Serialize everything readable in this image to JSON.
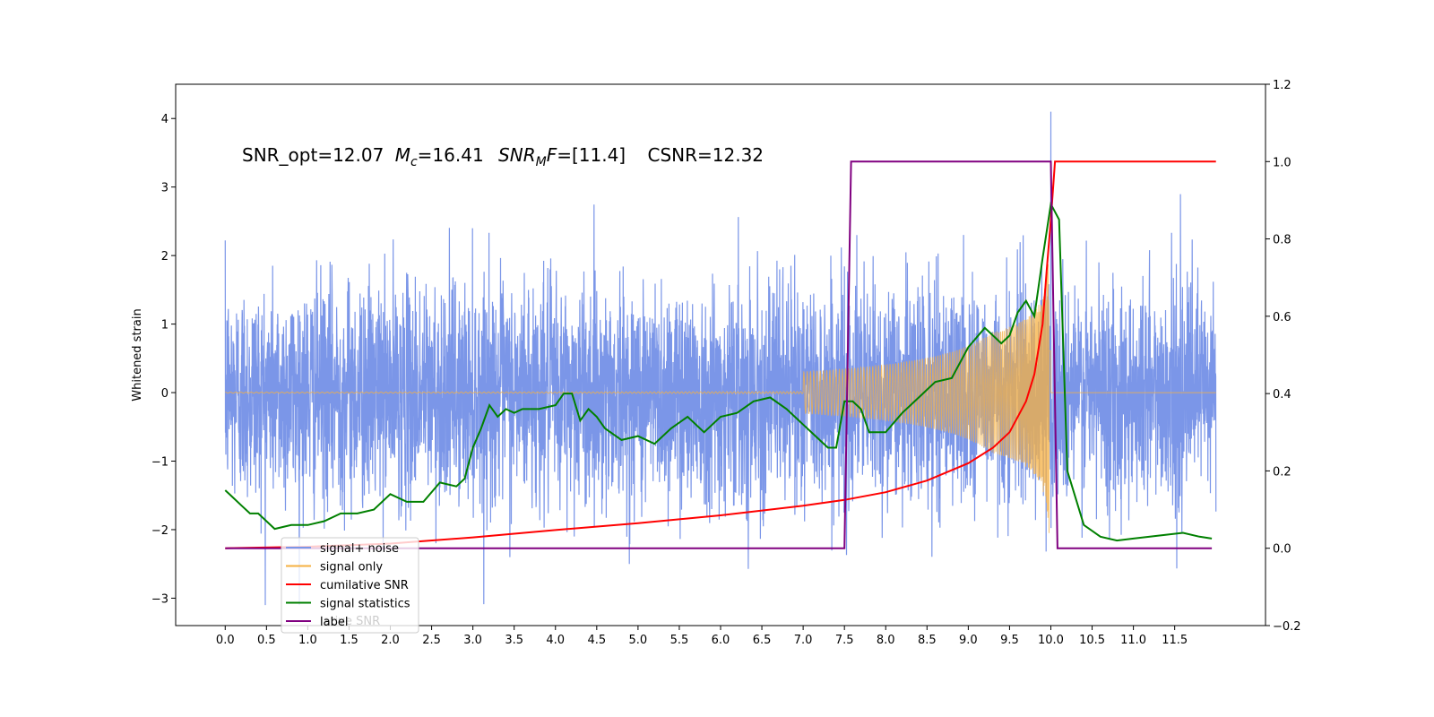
{
  "chart_data": {
    "type": "line",
    "title": "",
    "xlabel": "",
    "ylabel": "Whitened strain",
    "y2label": "",
    "xlim": [
      -0.6,
      12.6
    ],
    "ylim": [
      -3.4,
      4.5
    ],
    "y2lim": [
      -0.2,
      1.2
    ],
    "x_ticks": [
      0.0,
      0.5,
      1.0,
      1.5,
      2.0,
      2.5,
      3.0,
      3.5,
      4.0,
      4.5,
      5.0,
      5.5,
      6.0,
      6.5,
      7.0,
      7.5,
      8.0,
      8.5,
      9.0,
      9.5,
      10.0,
      10.5,
      11.0,
      11.5
    ],
    "x_tick_labels": [
      "0.0",
      "0.5",
      "1.0",
      "1.5",
      "2.0",
      "2.5",
      "3.0",
      "3.5",
      "4.0",
      "4.5",
      "5.0",
      "5.5",
      "6.0",
      "6.5",
      "7.0",
      "7.5",
      "8.0",
      "8.5",
      "9.0",
      "9.5",
      "10.0",
      "10.5",
      "11.0",
      "11.5"
    ],
    "y_ticks": [
      -3,
      -2,
      -1,
      0,
      1,
      2,
      3,
      4
    ],
    "y_tick_labels": [
      "−3",
      "−2",
      "−1",
      "0",
      "1",
      "2",
      "3",
      "4"
    ],
    "y2_ticks": [
      -0.2,
      0.0,
      0.2,
      0.4,
      0.6,
      0.8,
      1.0,
      1.2
    ],
    "y2_tick_labels": [
      "−0.2",
      "0.0",
      "0.2",
      "0.4",
      "0.6",
      "0.8",
      "1.0",
      "1.2"
    ],
    "grid": false,
    "legend_position": "lower-left",
    "annotation": {
      "snr_opt": "SNR_opt=12.07",
      "mc_symbol": "M",
      "mc_sub": "c",
      "mc_value": "=16.41",
      "mf_symbol": "SNR",
      "mf_sub": "M",
      "mf_symbol2": "F",
      "mf_value": "=[11.4]",
      "csnr": "CSNR=12.32"
    },
    "series": [
      {
        "name": "signal+ noise",
        "axis": "left",
        "color": "#7b96e8",
        "description": "whitened strain, noise with ~0.8 std spanning x 0 to 12",
        "x_range": [
          0.0,
          12.0
        ],
        "approx_range": [
          -3.1,
          4.1
        ]
      },
      {
        "name": "signal only",
        "axis": "left",
        "color": "#f5b041",
        "chirp": {
          "t_start": 0.0,
          "t_merge": 10.0,
          "t_end": 12.0,
          "amp_at_merge": 2.1
        }
      },
      {
        "name": "cumilative SNR",
        "axis": "right",
        "color": "#ff0000",
        "x": [
          0.0,
          1.0,
          2.0,
          3.0,
          4.0,
          5.0,
          6.0,
          7.0,
          7.5,
          8.0,
          8.5,
          9.0,
          9.3,
          9.5,
          9.7,
          9.8,
          9.9,
          9.95,
          10.0,
          10.05,
          12.0
        ],
        "y": [
          0.0,
          0.004,
          0.012,
          0.028,
          0.047,
          0.065,
          0.085,
          0.11,
          0.125,
          0.145,
          0.175,
          0.22,
          0.26,
          0.3,
          0.38,
          0.45,
          0.58,
          0.72,
          0.85,
          1.0,
          1.0
        ]
      },
      {
        "name": "signal statistics",
        "axis": "right",
        "color": "#008000",
        "x": [
          0.0,
          0.1,
          0.2,
          0.3,
          0.4,
          0.5,
          0.6,
          0.8,
          1.0,
          1.2,
          1.4,
          1.6,
          1.8,
          2.0,
          2.2,
          2.4,
          2.6,
          2.8,
          2.9,
          3.0,
          3.1,
          3.2,
          3.3,
          3.4,
          3.5,
          3.6,
          3.8,
          4.0,
          4.1,
          4.2,
          4.3,
          4.4,
          4.5,
          4.6,
          4.8,
          5.0,
          5.2,
          5.4,
          5.6,
          5.8,
          6.0,
          6.2,
          6.4,
          6.6,
          6.8,
          7.0,
          7.2,
          7.3,
          7.4,
          7.5,
          7.6,
          7.7,
          7.8,
          8.0,
          8.2,
          8.4,
          8.6,
          8.8,
          9.0,
          9.2,
          9.4,
          9.5,
          9.6,
          9.7,
          9.8,
          9.9,
          10.0,
          10.1,
          10.2,
          10.3,
          10.4,
          10.6,
          10.8,
          11.0,
          11.2,
          11.4,
          11.6,
          11.8,
          11.95
        ],
        "y": [
          0.15,
          0.13,
          0.11,
          0.09,
          0.09,
          0.07,
          0.05,
          0.06,
          0.06,
          0.07,
          0.09,
          0.09,
          0.1,
          0.14,
          0.12,
          0.12,
          0.17,
          0.16,
          0.18,
          0.26,
          0.31,
          0.37,
          0.34,
          0.36,
          0.35,
          0.36,
          0.36,
          0.37,
          0.4,
          0.4,
          0.33,
          0.36,
          0.34,
          0.31,
          0.28,
          0.29,
          0.27,
          0.31,
          0.34,
          0.3,
          0.34,
          0.35,
          0.38,
          0.39,
          0.36,
          0.32,
          0.28,
          0.26,
          0.26,
          0.38,
          0.38,
          0.36,
          0.3,
          0.3,
          0.35,
          0.39,
          0.43,
          0.44,
          0.52,
          0.57,
          0.53,
          0.55,
          0.61,
          0.64,
          0.6,
          0.75,
          0.89,
          0.85,
          0.2,
          0.13,
          0.06,
          0.03,
          0.02,
          0.025,
          0.03,
          0.035,
          0.04,
          0.03,
          0.025
        ]
      },
      {
        "name": "label",
        "axis": "right",
        "color": "#800080",
        "x": [
          0.0,
          7.5,
          7.58,
          10.0,
          10.08,
          11.95
        ],
        "y": [
          0.0,
          0.0,
          1.0,
          1.0,
          0.0,
          0.0
        ]
      }
    ],
    "ghost_legend_text": "lative SNR"
  }
}
